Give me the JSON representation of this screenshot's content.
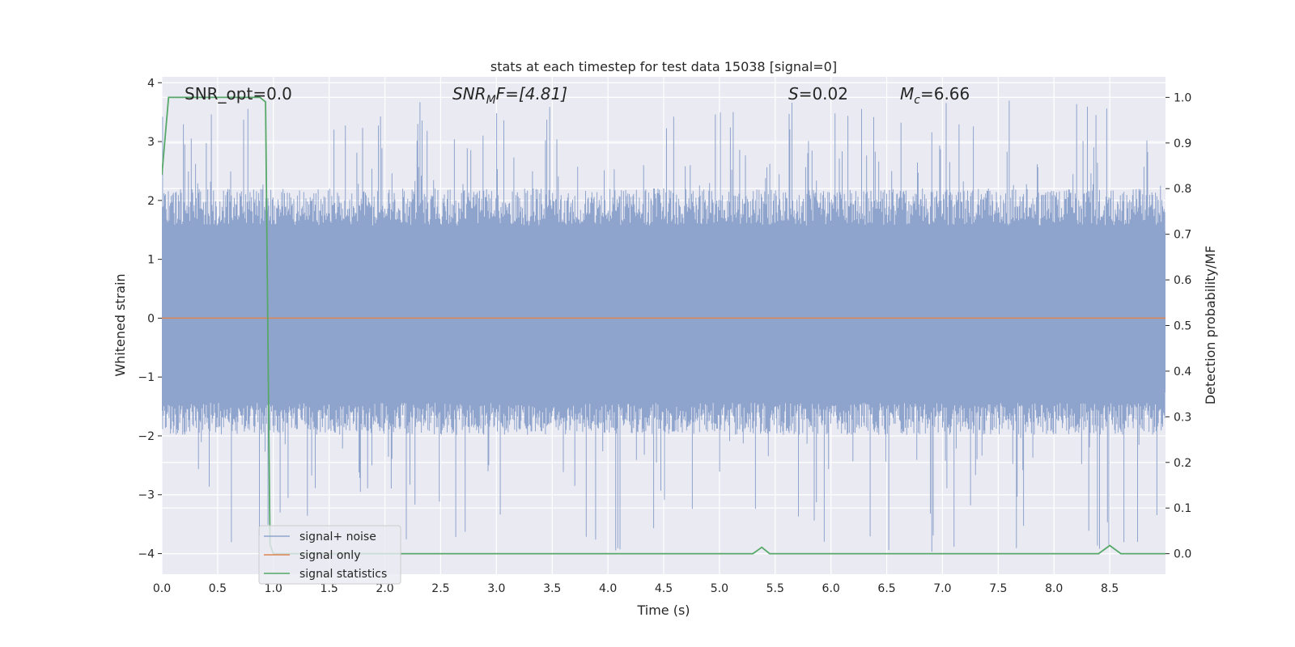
{
  "chart_data": {
    "type": "line",
    "title": "stats at each timestep for test data 15038 [signal=0]",
    "xlabel": "Time (s)",
    "ylabel": "Whitened strain",
    "y2label": "Detection probability/MF",
    "xlim": [
      0.0,
      9.0
    ],
    "ylim": [
      -4.35,
      4.1
    ],
    "y2lim": [
      -0.045,
      1.045
    ],
    "xticks": [
      "0.0",
      "0.5",
      "1.0",
      "1.5",
      "2.0",
      "2.5",
      "3.0",
      "3.5",
      "4.0",
      "4.5",
      "5.0",
      "5.5",
      "6.0",
      "6.5",
      "7.0",
      "7.5",
      "8.0",
      "8.5"
    ],
    "yticks": [
      "4",
      "3",
      "2",
      "1",
      "0",
      "−1",
      "−2",
      "−3",
      "−4"
    ],
    "y2ticks": [
      "1.0",
      "0.9",
      "0.8",
      "0.7",
      "0.6",
      "0.5",
      "0.4",
      "0.3",
      "0.2",
      "0.1",
      "0.0"
    ],
    "grid": true,
    "legend_position": "lower-left",
    "annotations": {
      "snr_opt": "SNR_opt=0.0",
      "snr_mf_base": "SNR",
      "snr_mf_sub": "M",
      "snr_mf_rest": "F=[4.81]",
      "s_italic": "S",
      "s_rest": "=0.02",
      "mc_base": "M",
      "mc_sub": "c",
      "mc_rest": "=6.66"
    },
    "series": [
      {
        "name": "signal+ noise",
        "color": "#8fa4cc",
        "axis": "left",
        "style": "noise-band",
        "typical_range": [
          -1.8,
          2.1
        ],
        "extreme_range": [
          -4.0,
          3.7
        ],
        "x": [
          0.0,
          9.0
        ]
      },
      {
        "name": "signal only",
        "color": "#dd8452",
        "axis": "left",
        "x": [
          0.0,
          9.0
        ],
        "y": [
          0.0,
          0.0
        ]
      },
      {
        "name": "signal statistics",
        "color": "#55a868",
        "axis": "right",
        "x": [
          0.0,
          0.06,
          0.12,
          0.5,
          0.88,
          0.93,
          0.97,
          1.0,
          1.25,
          2.0,
          2.45,
          3.0,
          4.0,
          5.0,
          5.3,
          5.38,
          5.45,
          5.5,
          6.0,
          7.0,
          7.25,
          8.0,
          8.4,
          8.5,
          8.6,
          9.0
        ],
        "y": [
          0.83,
          1.0,
          1.0,
          1.0,
          1.0,
          0.99,
          0.02,
          0.0,
          0.0,
          0.0,
          0.0,
          0.0,
          0.0,
          0.0,
          0.0,
          0.014,
          0.0,
          0.0,
          0.0,
          0.0,
          0.0,
          0.0,
          0.0,
          0.018,
          0.0,
          0.0
        ]
      }
    ]
  }
}
